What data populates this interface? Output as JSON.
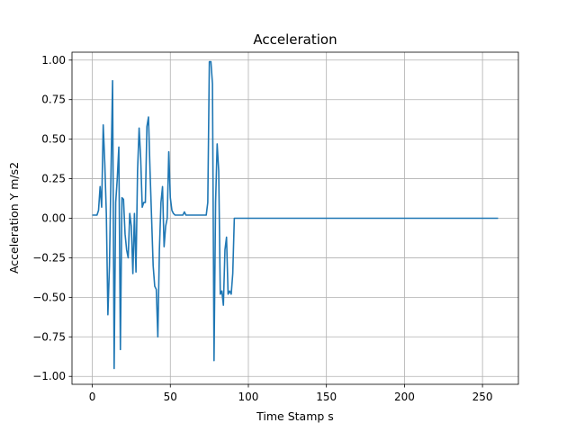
{
  "chart_data": {
    "type": "line",
    "title": "Acceleration",
    "xlabel": "Time Stamp s",
    "ylabel": "Acceleration Y m/s2",
    "xlim": [
      -13,
      273
    ],
    "ylim": [
      -1.05,
      1.05
    ],
    "x_ticks": [
      0,
      50,
      100,
      150,
      200,
      250
    ],
    "y_ticks": [
      -1.0,
      -0.75,
      -0.5,
      -0.25,
      0.0,
      0.25,
      0.5,
      0.75,
      1.0
    ],
    "x_tick_labels": [
      "0",
      "50",
      "100",
      "150",
      "200",
      "250"
    ],
    "y_tick_labels": [
      "−1.00",
      "−0.75",
      "−0.50",
      "−0.25",
      "0.00",
      "0.25",
      "0.50",
      "0.75",
      "1.00"
    ],
    "grid": true,
    "series": [
      {
        "color": "#1f77b4",
        "x": [
          0,
          1,
          2,
          3,
          4,
          5,
          6,
          7,
          8,
          9,
          10,
          11,
          12,
          13,
          14,
          15,
          16,
          17,
          18,
          19,
          20,
          21,
          22,
          23,
          24,
          25,
          26,
          27,
          28,
          29,
          30,
          31,
          32,
          33,
          34,
          35,
          36,
          37,
          38,
          39,
          40,
          41,
          42,
          43,
          44,
          45,
          46,
          47,
          48,
          49,
          50,
          51,
          52,
          53,
          54,
          55,
          56,
          57,
          58,
          59,
          60,
          61,
          62,
          63,
          64,
          65,
          66,
          67,
          68,
          69,
          70,
          71,
          72,
          73,
          74,
          75,
          76,
          77,
          78,
          79,
          80,
          81,
          82,
          83,
          84,
          85,
          86,
          87,
          88,
          89,
          90,
          91,
          92,
          100,
          150,
          200,
          250,
          260
        ],
        "y": [
          0.02,
          0.02,
          0.02,
          0.02,
          0.05,
          0.2,
          0.07,
          0.59,
          0.35,
          0.03,
          -0.61,
          -0.3,
          0.3,
          0.87,
          -0.95,
          0.1,
          0.25,
          0.45,
          -0.83,
          0.13,
          0.12,
          -0.1,
          -0.2,
          -0.25,
          0.03,
          -0.05,
          -0.35,
          0.03,
          -0.34,
          0.3,
          0.57,
          0.38,
          0.07,
          0.1,
          0.1,
          0.58,
          0.64,
          0.3,
          0.0,
          -0.3,
          -0.43,
          -0.45,
          -0.75,
          -0.2,
          0.1,
          0.2,
          -0.18,
          -0.05,
          0.0,
          0.42,
          0.13,
          0.05,
          0.03,
          0.02,
          0.02,
          0.02,
          0.02,
          0.02,
          0.02,
          0.04,
          0.02,
          0.02,
          0.02,
          0.02,
          0.02,
          0.02,
          0.02,
          0.02,
          0.02,
          0.02,
          0.02,
          0.02,
          0.02,
          0.02,
          0.1,
          0.99,
          0.99,
          0.85,
          -0.9,
          0.1,
          0.47,
          0.3,
          -0.48,
          -0.46,
          -0.55,
          -0.2,
          -0.12,
          -0.48,
          -0.46,
          -0.48,
          -0.35,
          0.0,
          0.0,
          0.0,
          0.0,
          0.0,
          0.0,
          0.0
        ]
      }
    ]
  }
}
